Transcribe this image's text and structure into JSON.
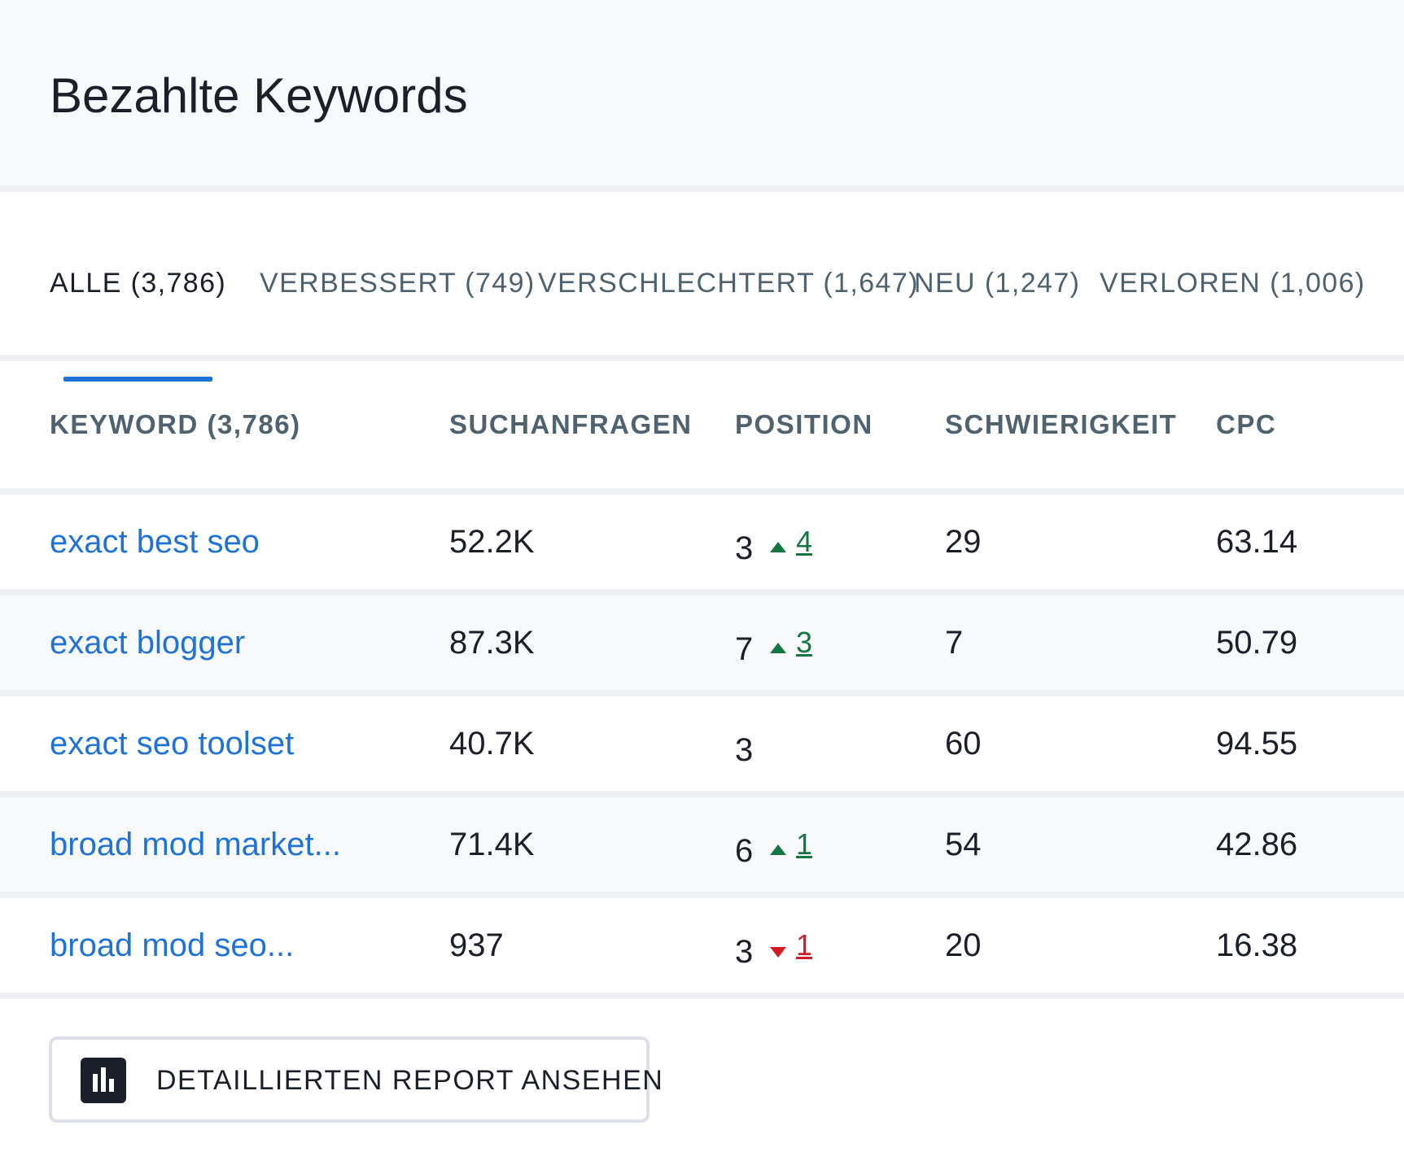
{
  "header": {
    "title": "Bezahlte Keywords"
  },
  "tabs": [
    {
      "label": "ALLE (3,786)",
      "active": true
    },
    {
      "label": "VERBESSERT  (749)",
      "active": false
    },
    {
      "label": "VERSCHLECHTERT (1,647)",
      "active": false
    },
    {
      "label": "NEU (1,247)",
      "active": false
    },
    {
      "label": "VERLOREN (1,006)",
      "active": false
    }
  ],
  "table": {
    "columns": [
      "KEYWORD (3,786)",
      "SUCHANFRAGEN",
      "POSITION",
      "SCHWIERIGKEIT",
      "CPC"
    ],
    "rows": [
      {
        "keyword": "exact best seo",
        "volume": "52.2K",
        "position": "3",
        "trend": "up",
        "delta": "4",
        "difficulty": "29",
        "cpc": "63.14"
      },
      {
        "keyword": "exact blogger",
        "volume": "87.3K",
        "position": "7",
        "trend": "up",
        "delta": "3",
        "difficulty": "7",
        "cpc": "50.79"
      },
      {
        "keyword": "exact seo toolset",
        "volume": "40.7K",
        "position": "3",
        "trend": "none",
        "delta": "",
        "difficulty": "60",
        "cpc": "94.55"
      },
      {
        "keyword": "broad mod market...",
        "volume": "71.4K",
        "position": "6",
        "trend": "up",
        "delta": "1",
        "difficulty": "54",
        "cpc": "42.86"
      },
      {
        "keyword": "broad mod seo...",
        "volume": "937",
        "position": "3",
        "trend": "down",
        "delta": "1",
        "difficulty": "20",
        "cpc": "16.38"
      }
    ]
  },
  "footer": {
    "report_button_label": "DETAILLIERTEN REPORT ANSEHEN",
    "report_icon": "bar-chart-icon"
  },
  "colors": {
    "accent": "#1f73d6",
    "trend_up": "#13773f",
    "trend_down": "#d21c25",
    "header_bg": "#f8f9fb",
    "muted_text": "#4f6270"
  }
}
